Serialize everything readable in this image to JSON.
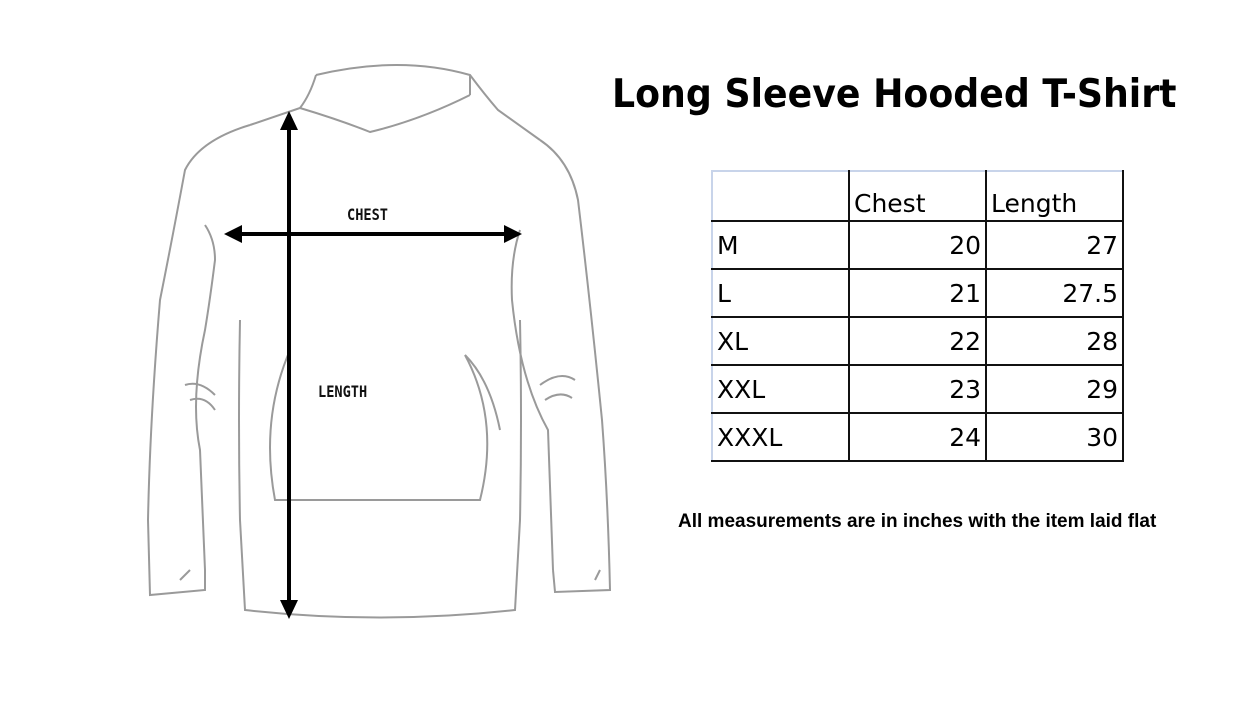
{
  "title": "Long Sleeve Hooded T-Shirt",
  "diagram": {
    "chest_label": "CHEST",
    "length_label": "LENGTH",
    "line_color": "#9a9a9a",
    "arrow_color": "#000000"
  },
  "size_table": {
    "headers": [
      "",
      "Chest",
      "Length"
    ],
    "rows": [
      {
        "size": "M",
        "chest": "20",
        "length": "27"
      },
      {
        "size": "L",
        "chest": "21",
        "length": "27.5"
      },
      {
        "size": "XL",
        "chest": "22",
        "length": "28"
      },
      {
        "size": "XXL",
        "chest": "23",
        "length": "29"
      },
      {
        "size": "XXXL",
        "chest": "24",
        "length": "30"
      }
    ]
  },
  "note": "All measurements are in inches with the item laid flat"
}
